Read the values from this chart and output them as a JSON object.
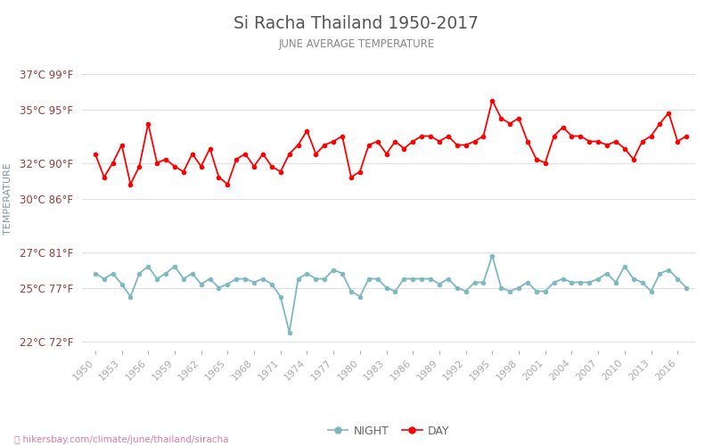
{
  "title": "Si Racha Thailand 1950-2017",
  "subtitle": "JUNE AVERAGE TEMPERATURE",
  "ylabel": "TEMPERATURE",
  "watermark": "hikersbay.com/climate/june/thailand/siracha",
  "years": [
    1950,
    1951,
    1952,
    1953,
    1954,
    1955,
    1956,
    1957,
    1958,
    1959,
    1960,
    1961,
    1962,
    1963,
    1964,
    1965,
    1966,
    1967,
    1968,
    1969,
    1970,
    1971,
    1972,
    1973,
    1974,
    1975,
    1976,
    1977,
    1978,
    1979,
    1980,
    1981,
    1982,
    1983,
    1984,
    1985,
    1986,
    1987,
    1988,
    1989,
    1990,
    1991,
    1992,
    1993,
    1994,
    1995,
    1996,
    1997,
    1998,
    1999,
    2000,
    2001,
    2002,
    2003,
    2004,
    2005,
    2006,
    2007,
    2008,
    2009,
    2010,
    2011,
    2012,
    2013,
    2014,
    2015,
    2016,
    2017
  ],
  "day_temps": [
    32.5,
    31.2,
    32.0,
    33.0,
    30.8,
    31.8,
    34.2,
    32.0,
    32.2,
    31.8,
    31.5,
    32.5,
    31.8,
    32.8,
    31.2,
    30.8,
    32.2,
    32.5,
    31.8,
    32.5,
    31.8,
    31.5,
    32.5,
    33.0,
    33.8,
    32.5,
    33.0,
    33.2,
    33.5,
    31.2,
    31.5,
    33.0,
    33.2,
    32.5,
    33.2,
    32.8,
    33.2,
    33.5,
    33.5,
    33.2,
    33.5,
    33.0,
    33.0,
    33.2,
    33.5,
    35.5,
    34.5,
    34.2,
    34.5,
    33.2,
    32.2,
    32.0,
    33.5,
    34.0,
    33.5,
    33.5,
    33.2,
    33.2,
    33.0,
    33.2,
    32.8,
    32.2,
    33.2,
    33.5,
    34.2,
    34.8,
    33.2,
    33.5
  ],
  "night_temps": [
    25.8,
    25.5,
    25.8,
    25.2,
    24.5,
    25.8,
    26.2,
    25.5,
    25.8,
    26.2,
    25.5,
    25.8,
    25.2,
    25.5,
    25.0,
    25.2,
    25.5,
    25.5,
    25.3,
    25.5,
    25.2,
    24.5,
    22.5,
    25.5,
    25.8,
    25.5,
    25.5,
    26.0,
    25.8,
    24.8,
    24.5,
    25.5,
    25.5,
    25.0,
    24.8,
    25.5,
    25.5,
    25.5,
    25.5,
    25.2,
    25.5,
    25.0,
    24.8,
    25.3,
    25.3,
    26.8,
    25.0,
    24.8,
    25.0,
    25.3,
    24.8,
    24.8,
    25.3,
    25.5,
    25.3,
    25.3,
    25.3,
    25.5,
    25.8,
    25.3,
    26.2,
    25.5,
    25.3,
    24.8,
    25.8,
    26.0,
    25.5,
    25.0
  ],
  "day_color": "#ff0000",
  "night_color": "#7db8bf",
  "title_color": "#555555",
  "subtitle_color": "#888888",
  "ylabel_color": "#7a9aaa",
  "tick_label_color": "#9b3a3a",
  "tick_color": "#aaaaaa",
  "grid_color": "#e0e0e0",
  "background_color": "#ffffff",
  "yticks_c": [
    22,
    25,
    27,
    30,
    32,
    35,
    37
  ],
  "yticks_f": [
    72,
    77,
    81,
    86,
    90,
    95,
    99
  ],
  "ylim": [
    21.5,
    38.5
  ],
  "xlim": [
    1948.5,
    2018.0
  ],
  "xtick_years": [
    1950,
    1953,
    1956,
    1959,
    1962,
    1965,
    1968,
    1971,
    1974,
    1977,
    1980,
    1983,
    1986,
    1989,
    1992,
    1995,
    1998,
    2001,
    2004,
    2007,
    2010,
    2013,
    2016
  ],
  "watermark_color": "#e07aaa",
  "legend_night_label": "NIGHT",
  "legend_day_label": "DAY",
  "marker_size_night": 3.5,
  "marker_size_day": 4,
  "line_width": 1.3
}
